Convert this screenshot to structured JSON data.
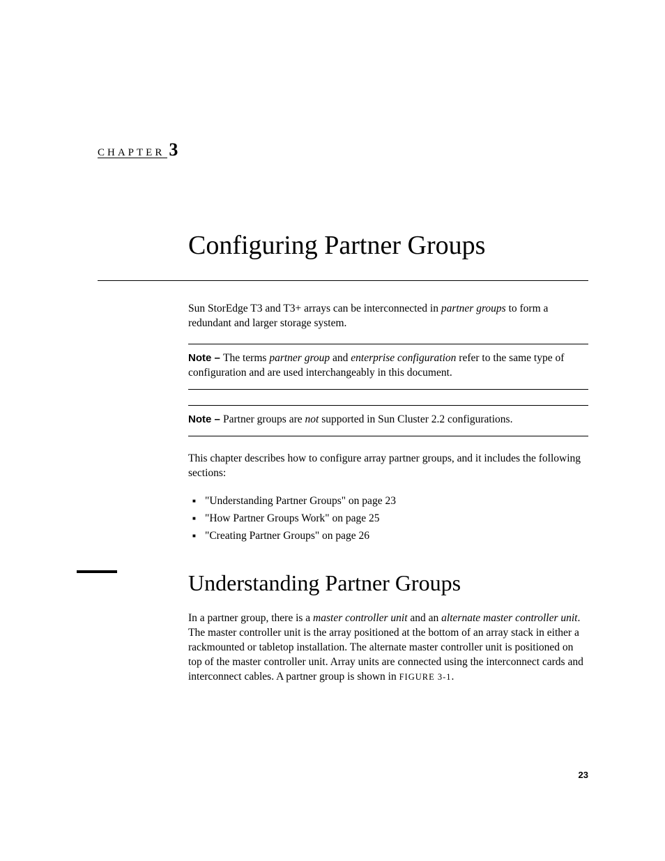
{
  "chapter": {
    "label": "CHAPTER",
    "number": "3",
    "title": "Configuring Partner Groups"
  },
  "intro": {
    "text_pre": "Sun StorEdge T3 and T3+ arrays can be interconnected in ",
    "text_italic": "partner groups",
    "text_post": " to form a redundant and larger storage system."
  },
  "note1": {
    "label": "Note – ",
    "pre": "The terms ",
    "italic1": "partner group",
    "mid": " and ",
    "italic2": "enterprise configuration",
    "post": " refer to the same type of configuration and are used interchangeably in this document."
  },
  "note2": {
    "label": "Note – ",
    "pre": "Partner groups are ",
    "italic": "not",
    "post": " supported in Sun Cluster 2.2 configurations."
  },
  "toc_intro": "This chapter describes how to configure array partner groups, and it includes the following sections:",
  "toc": [
    "\"Understanding Partner Groups\" on page 23",
    "\"How Partner Groups Work\" on page 25",
    "\"Creating Partner Groups\" on page 26"
  ],
  "section": {
    "title": "Understanding Partner Groups",
    "body_pre": "In a partner group, there is a ",
    "body_i1": "master controller unit",
    "body_mid1": " and an ",
    "body_i2": "alternate master controller unit",
    "body_post": ". The master controller unit is the array positioned at the bottom of an array stack in either a rackmounted or tabletop installation. The alternate master controller unit is positioned on top of the master controller unit. Array units are connected using the interconnect cards and interconnect cables. A partner group is shown in ",
    "figure_ref": "FIGURE 3-1",
    "body_end": "."
  },
  "page_number": "23",
  "colors": {
    "text": "#000000",
    "background": "#ffffff"
  },
  "typography": {
    "body_font": "Palatino serif",
    "body_size_pt": 11,
    "title_size_pt": 28,
    "section_title_size_pt": 24,
    "chapter_label_size_pt": 11,
    "chapter_number_size_pt": 19
  }
}
